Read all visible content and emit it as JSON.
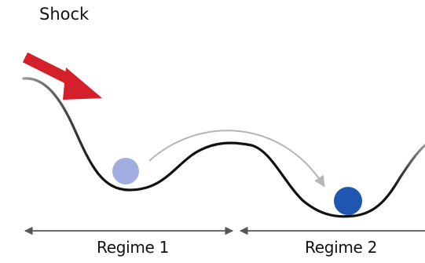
{
  "title": "Shock",
  "regimes": [
    {
      "label": "Regime 1"
    },
    {
      "label": "Regime 2"
    }
  ],
  "colors": {
    "shock_arrow": "#d4202a",
    "ball_regime_1": "#a3aee0",
    "ball_regime_2": "#1f56b0",
    "landscape_curve": "#111111",
    "landscape_curve_fade": "#9a9a9a",
    "transition_arrow": "#b5b5b5",
    "extent_arrow": "#555555",
    "text": "#111111"
  },
  "icons": {
    "shock": "shock-arrow-icon",
    "transition": "transition-arrow-icon"
  }
}
